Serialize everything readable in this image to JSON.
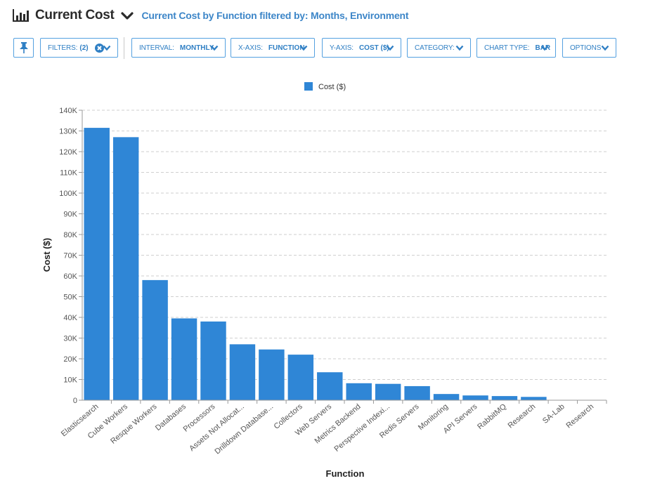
{
  "header": {
    "icon": "bar-chart-icon",
    "title": "Current Cost",
    "subtitle": "Current Cost by Function filtered by: Months, Environment"
  },
  "toolbar": {
    "pin_icon": "pin-icon",
    "filters": {
      "key": "FILTERS:",
      "value": "(2)"
    },
    "interval": {
      "key": "INTERVAL:",
      "value": "MONTHLY"
    },
    "x_axis": {
      "key": "X-AXIS:",
      "value": "FUNCTION"
    },
    "y_axis": {
      "key": "Y-AXIS:",
      "value": "COST ($)"
    },
    "category": {
      "key": "CATEGORY:",
      "value": ""
    },
    "chart_type": {
      "key": "CHART TYPE:",
      "value": "BAR"
    },
    "options": {
      "key": "OPTIONS",
      "value": ""
    }
  },
  "colors": {
    "accent": "#3d86c8",
    "bar": "#2f86d6",
    "border": "#55a1e0"
  },
  "chart_data": {
    "type": "bar",
    "xlabel": "Function",
    "ylabel": "Cost ($)",
    "ylim": [
      0,
      140000
    ],
    "yticks": [
      "0",
      "10K",
      "20K",
      "30K",
      "40K",
      "50K",
      "60K",
      "70K",
      "80K",
      "90K",
      "100K",
      "110K",
      "120K",
      "130K",
      "140K"
    ],
    "legend": "top-center",
    "grid": true,
    "categories": [
      "Elasticsearch",
      "Cube Workers",
      "Resque Workers",
      "Databases",
      "Processors",
      "Assets Not Allocat...",
      "Drilldown Database...",
      "Collectors",
      "Web Servers",
      "Metrics Backend",
      "Perspective Indexi...",
      "Redis Servers",
      "Monitoring",
      "API Servers",
      "RabbitMQ",
      "Research",
      "SA-Lab",
      "Research"
    ],
    "series": [
      {
        "name": "Cost ($)",
        "color": "#2f86d6",
        "values": [
          131500,
          127000,
          58000,
          39500,
          38000,
          27000,
          24500,
          22000,
          13500,
          8200,
          7900,
          6800,
          3000,
          2300,
          2000,
          1600,
          0,
          0
        ]
      }
    ]
  }
}
